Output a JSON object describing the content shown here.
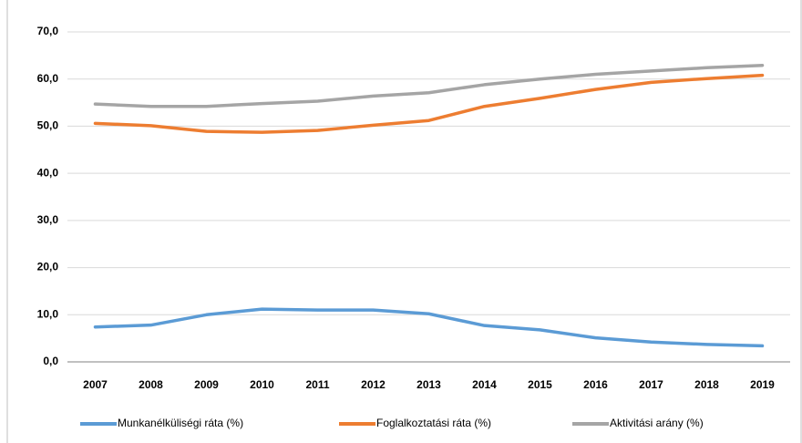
{
  "chart_data": {
    "type": "line",
    "categories": [
      "2007",
      "2008",
      "2009",
      "2010",
      "2011",
      "2012",
      "2013",
      "2014",
      "2015",
      "2016",
      "2017",
      "2018",
      "2019"
    ],
    "series": [
      {
        "name": "Munkanélküliségi ráta (%)",
        "color": "#5b9bd5",
        "values": [
          7.4,
          7.8,
          10.0,
          11.2,
          11.0,
          11.0,
          10.2,
          7.7,
          6.8,
          5.1,
          4.2,
          3.7,
          3.4
        ]
      },
      {
        "name": "Foglalkoztatási ráta (%)",
        "color": "#ed7d31",
        "values": [
          50.6,
          50.1,
          48.9,
          48.7,
          49.1,
          50.2,
          51.2,
          54.2,
          55.9,
          57.8,
          59.3,
          60.1,
          60.8
        ]
      },
      {
        "name": "Aktivitási arány (%)",
        "color": "#a5a5a5",
        "values": [
          54.7,
          54.2,
          54.2,
          54.8,
          55.3,
          56.4,
          57.1,
          58.8,
          60.0,
          61.0,
          61.7,
          62.4,
          62.9
        ]
      }
    ],
    "ylim": [
      0,
      70
    ],
    "yticks": [
      {
        "value": 0,
        "label": "0,0"
      },
      {
        "value": 10,
        "label": "10,0"
      },
      {
        "value": 20,
        "label": "20,0"
      },
      {
        "value": 30,
        "label": "30,0"
      },
      {
        "value": 40,
        "label": "40,0"
      },
      {
        "value": 50,
        "label": "50,0"
      },
      {
        "value": 60,
        "label": "60,0"
      },
      {
        "value": 70,
        "label": "70,0"
      }
    ],
    "grid": true,
    "legend": "bottom"
  }
}
